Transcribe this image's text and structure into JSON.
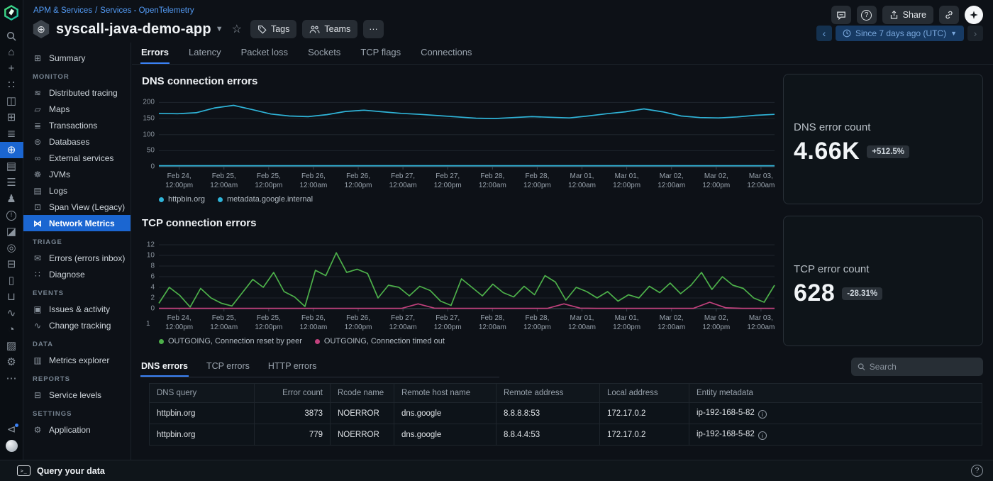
{
  "header": {
    "breadcrumb": {
      "part1": "APM & Services",
      "sep": "/",
      "part2": "Services - OpenTelemetry"
    },
    "title": "syscall-java-demo-app",
    "tags_label": "Tags",
    "teams_label": "Teams",
    "more_label": "···",
    "share_label": "Share",
    "time_range": "Since 7 days ago (UTC)"
  },
  "rail": {
    "icons": [
      {
        "name": "search-icon",
        "glyph": "svg:magnifier"
      },
      {
        "name": "home-icon",
        "glyph": "⌂"
      },
      {
        "name": "add-icon",
        "glyph": "+"
      },
      {
        "name": "apps-grid-icon",
        "glyph": "∷"
      },
      {
        "name": "catalog-icon",
        "glyph": "◫"
      },
      {
        "name": "dashboards-icon",
        "glyph": "⊞"
      },
      {
        "name": "layers-icon",
        "glyph": "≣"
      },
      {
        "name": "apm-services-globe-icon",
        "glyph": "⊕",
        "active": true
      },
      {
        "name": "logs-page-icon",
        "glyph": "▤"
      },
      {
        "name": "traces-list-icon",
        "glyph": "☰"
      },
      {
        "name": "agents-icon",
        "glyph": "♟"
      },
      {
        "name": "alerts-icon",
        "glyph": "circle:!"
      },
      {
        "name": "notebook-icon",
        "glyph": "◪"
      },
      {
        "name": "monitors-target-icon",
        "glyph": "◎"
      },
      {
        "name": "browser-tests-icon",
        "glyph": "⊟"
      },
      {
        "name": "infrastructure-host-icon",
        "glyph": "▯"
      },
      {
        "name": "inbox-icon",
        "glyph": "⊔"
      },
      {
        "name": "change-pulse-icon",
        "glyph": "∿"
      },
      {
        "name": "gauge-icon",
        "glyph": "◔"
      },
      {
        "name": "reports-chart-icon",
        "glyph": "▨"
      },
      {
        "name": "settings-gear-icon",
        "glyph": "⚙"
      },
      {
        "name": "more-ellipsis-icon",
        "glyph": "⋯"
      }
    ],
    "bottom_icons": [
      {
        "name": "announcements-megaphone-icon",
        "glyph": "⊲",
        "mega": true
      },
      {
        "name": "user-avatar",
        "glyph": "avatar"
      }
    ]
  },
  "sidebar": {
    "sections": [
      {
        "header": null,
        "items": [
          {
            "label": "Summary",
            "icon": "⊞",
            "name": "sidebar-item-summary"
          }
        ]
      },
      {
        "header": "MONITOR",
        "items": [
          {
            "label": "Distributed tracing",
            "icon": "≋",
            "name": "sidebar-item-distributed-tracing"
          },
          {
            "label": "Maps",
            "icon": "▱",
            "name": "sidebar-item-maps"
          },
          {
            "label": "Transactions",
            "icon": "≣",
            "name": "sidebar-item-transactions"
          },
          {
            "label": "Databases",
            "icon": "⊜",
            "name": "sidebar-item-databases"
          },
          {
            "label": "External services",
            "icon": "∞",
            "name": "sidebar-item-external-services"
          },
          {
            "label": "JVMs",
            "icon": "☸",
            "name": "sidebar-item-jvms"
          },
          {
            "label": "Logs",
            "icon": "▤",
            "name": "sidebar-item-logs"
          },
          {
            "label": "Span View (Legacy)",
            "icon": "⊡",
            "name": "sidebar-item-span-view"
          },
          {
            "label": "Network Metrics",
            "icon": "⋈",
            "name": "sidebar-item-network-metrics",
            "active": true
          }
        ]
      },
      {
        "header": "TRIAGE",
        "items": [
          {
            "label": "Errors (errors inbox)",
            "icon": "✉",
            "name": "sidebar-item-errors-inbox"
          },
          {
            "label": "Diagnose",
            "icon": "∷",
            "name": "sidebar-item-diagnose"
          }
        ]
      },
      {
        "header": "EVENTS",
        "items": [
          {
            "label": "Issues & activity",
            "icon": "▣",
            "name": "sidebar-item-issues-activity"
          },
          {
            "label": "Change tracking",
            "icon": "∿",
            "name": "sidebar-item-change-tracking"
          }
        ]
      },
      {
        "header": "DATA",
        "items": [
          {
            "label": "Metrics explorer",
            "icon": "▥",
            "name": "sidebar-item-metrics-explorer"
          }
        ]
      },
      {
        "header": "REPORTS",
        "items": [
          {
            "label": "Service levels",
            "icon": "⊟",
            "name": "sidebar-item-service-levels"
          }
        ]
      },
      {
        "header": "SETTINGS",
        "items": [
          {
            "label": "Application",
            "icon": "⚙",
            "name": "sidebar-item-application"
          }
        ]
      }
    ]
  },
  "tabs": {
    "items": [
      "Errors",
      "Latency",
      "Packet loss",
      "Sockets",
      "TCP flags",
      "Connections"
    ],
    "active_index": 0
  },
  "chart_data": [
    {
      "type": "line",
      "title": "DNS connection errors",
      "yticks": [
        0,
        50,
        100,
        150,
        200
      ],
      "ymax": 212,
      "grid": true,
      "legend_position": "bottom",
      "xlabels": [
        [
          "Feb 24,",
          "12:00pm"
        ],
        [
          "Feb 25,",
          "12:00am"
        ],
        [
          "Feb 25,",
          "12:00pm"
        ],
        [
          "Feb 26,",
          "12:00am"
        ],
        [
          "Feb 26,",
          "12:00pm"
        ],
        [
          "Feb 27,",
          "12:00am"
        ],
        [
          "Feb 27,",
          "12:00pm"
        ],
        [
          "Feb 28,",
          "12:00am"
        ],
        [
          "Feb 28,",
          "12:00pm"
        ],
        [
          "Mar 01,",
          "12:00am"
        ],
        [
          "Mar 01,",
          "12:00pm"
        ],
        [
          "Mar 02,",
          "12:00am"
        ],
        [
          "Mar 02,",
          "12:00pm"
        ],
        [
          "Mar 03,",
          "12:00am"
        ]
      ],
      "series": [
        {
          "name": "httpbin.org",
          "color": "#2fb4d8",
          "values": [
            166,
            165,
            168,
            183,
            191,
            178,
            164,
            158,
            156,
            162,
            172,
            176,
            171,
            166,
            163,
            159,
            155,
            151,
            150,
            153,
            156,
            154,
            152,
            158,
            165,
            171,
            180,
            171,
            158,
            153,
            152,
            155,
            160,
            163
          ]
        },
        {
          "name": "metadata.google.internal",
          "color": "#2fb4d8",
          "values": [
            3,
            3
          ]
        }
      ]
    },
    {
      "type": "line",
      "title": "TCP connection errors",
      "yticks": [
        0,
        2,
        4,
        6,
        8,
        10,
        12
      ],
      "ymax": 12.8,
      "grid": true,
      "legend_position": "bottom",
      "extra_tick": "1",
      "xlabels": [
        [
          "Feb 24,",
          "12:00pm"
        ],
        [
          "Feb 25,",
          "12:00am"
        ],
        [
          "Feb 25,",
          "12:00pm"
        ],
        [
          "Feb 26,",
          "12:00am"
        ],
        [
          "Feb 26,",
          "12:00pm"
        ],
        [
          "Feb 27,",
          "12:00am"
        ],
        [
          "Feb 27,",
          "12:00pm"
        ],
        [
          "Feb 28,",
          "12:00am"
        ],
        [
          "Feb 28,",
          "12:00pm"
        ],
        [
          "Mar 01,",
          "12:00am"
        ],
        [
          "Mar 01,",
          "12:00pm"
        ],
        [
          "Mar 02,",
          "12:00am"
        ],
        [
          "Mar 02,",
          "12:00pm"
        ],
        [
          "Mar 03,",
          "12:00am"
        ]
      ],
      "series": [
        {
          "name": "OUTGOING, Connection reset by peer",
          "color": "#4db04a",
          "values": [
            1.0,
            4.0,
            2.5,
            0.3,
            3.8,
            2.0,
            1.0,
            0.5,
            3.0,
            5.5,
            4.0,
            6.8,
            3.2,
            2.2,
            0.4,
            7.2,
            6.2,
            10.5,
            6.8,
            7.4,
            6.6,
            2.0,
            4.4,
            4.0,
            2.4,
            4.2,
            3.4,
            1.4,
            0.6,
            5.6,
            4.0,
            2.4,
            4.6,
            3.0,
            2.2,
            4.2,
            2.6,
            6.2,
            5.0,
            1.6,
            4.0,
            3.2,
            2.0,
            3.2,
            1.4,
            2.6,
            2.0,
            4.2,
            3.0,
            4.8,
            2.8,
            4.4,
            6.8,
            3.6,
            6.0,
            4.4,
            3.8,
            2.0,
            1.2,
            4.4
          ]
        },
        {
          "name": "OUTGOING, Connection timed out",
          "color": "#c2417d",
          "values": [
            0.05,
            0.05,
            0.05,
            0.05,
            0.05,
            0.05,
            0.05,
            0.05,
            0.05,
            0.05,
            0.05,
            0.05,
            0.05,
            0.05,
            0.05,
            0.05,
            0.9,
            0.1,
            0.05,
            0.05,
            0.05,
            0.05,
            0.05,
            0.05,
            0.05,
            0.9,
            0.1,
            0.05,
            0.05,
            0.05,
            0.05,
            0.05,
            0.05,
            0.05,
            1.2,
            0.15,
            0.05,
            0.05,
            0.05
          ]
        }
      ]
    }
  ],
  "stats": [
    {
      "label": "DNS error count",
      "value": "4.66K",
      "delta": "+512.5%"
    },
    {
      "label": "TCP error count",
      "value": "628",
      "delta": "-28.31%"
    }
  ],
  "table": {
    "tabs": [
      "DNS errors",
      "TCP errors",
      "HTTP errors"
    ],
    "active_tab_index": 0,
    "search_placeholder": "Search",
    "columns": [
      "DNS query",
      "Error count",
      "Rcode name",
      "Remote host name",
      "Remote address",
      "Local address",
      "Entity metadata"
    ],
    "rows": [
      {
        "dns_query": "httpbin.org",
        "error_count": "3873",
        "rcode_name": "NOERROR",
        "remote_host_name": "dns.google",
        "remote_address": "8.8.8.8:53",
        "local_address": "172.17.0.2",
        "entity_metadata": "ip-192-168-5-82"
      },
      {
        "dns_query": "httpbin.org",
        "error_count": "779",
        "rcode_name": "NOERROR",
        "remote_host_name": "dns.google",
        "remote_address": "8.8.4.4:53",
        "local_address": "172.17.0.2",
        "entity_metadata": "ip-192-168-5-82"
      }
    ]
  },
  "footer": {
    "query_label": "Query your data"
  },
  "colors": {
    "accent_blue": "#1b66d1",
    "link_blue": "#539bf5",
    "cyan": "#2fb4d8",
    "green": "#4db04a",
    "magenta": "#c2417d"
  }
}
